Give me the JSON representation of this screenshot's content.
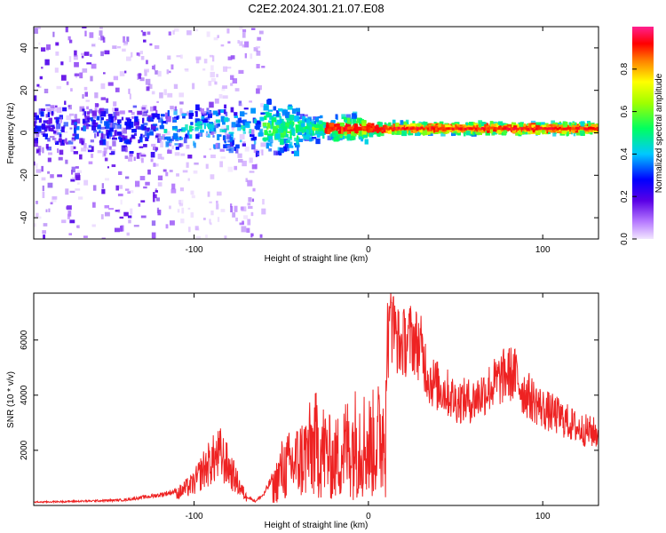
{
  "title": "C2E2.2024.301.21.07.E08",
  "colors": {
    "snr_line": "#ee2222",
    "axis": "#000000"
  },
  "chart_data": [
    {
      "type": "heatmap",
      "name": "spectrogram",
      "xlabel": "Height of straight line (km)",
      "ylabel": "Frequency (Hz)",
      "xlim": [
        -192,
        132
      ],
      "ylim": [
        -50,
        50
      ],
      "xticks": [
        -100,
        0,
        100
      ],
      "xtick_labels": [
        "-100",
        "0",
        "100"
      ],
      "yticks": [
        -40,
        -20,
        0,
        20,
        40
      ],
      "ytick_labels": [
        "-40",
        "-20",
        "0",
        "20",
        "40"
      ],
      "colorbar": {
        "label": "Normalized spectral amplitude",
        "range": [
          0,
          1
        ],
        "ticks": [
          0.0,
          0.2,
          0.4,
          0.6,
          0.8
        ],
        "tick_labels": [
          "0.0",
          "0.2",
          "0.4",
          "0.6",
          "0.8"
        ],
        "colormap": "rainbow (violet → blue → cyan → green → yellow → red → magenta)"
      },
      "features": {
        "dominant_band_frequency_hz": 2,
        "band_peak_x_km": [
          -20,
          110
        ],
        "scatter_noise_x_km": [
          -192,
          -60
        ]
      }
    },
    {
      "type": "line",
      "name": "snr",
      "xlabel": "Height of straight line (km)",
      "ylabel": "SNR (10 * v/v)",
      "xlim": [
        -192,
        132
      ],
      "ylim": [
        0,
        7700
      ],
      "xticks": [
        -100,
        0,
        100
      ],
      "xtick_labels": [
        "-100",
        "0",
        "100"
      ],
      "yticks": [
        2000,
        4000,
        6000
      ],
      "ytick_labels": [
        "2000",
        "4000",
        "6000"
      ],
      "envelope": {
        "x": [
          -192,
          -160,
          -140,
          -120,
          -110,
          -100,
          -95,
          -90,
          -85,
          -80,
          -75,
          -70,
          -65,
          -60,
          -55,
          -50,
          -45,
          -40,
          -35,
          -30,
          -25,
          -20,
          -15,
          -10,
          -5,
          0,
          5,
          10,
          13,
          18,
          25,
          30,
          35,
          40,
          45,
          50,
          60,
          70,
          80,
          85,
          88,
          95,
          100,
          110,
          120,
          132
        ],
        "y": [
          120,
          160,
          200,
          380,
          520,
          1000,
          1600,
          2000,
          2300,
          1700,
          1000,
          350,
          150,
          400,
          1000,
          2200,
          2500,
          2800,
          3300,
          3800,
          3400,
          2700,
          3500,
          3800,
          4200,
          3700,
          4000,
          5000,
          6700,
          5800,
          6100,
          5700,
          4600,
          4300,
          4100,
          3800,
          3800,
          4300,
          4800,
          4700,
          4200,
          3800,
          3500,
          3200,
          2800,
          2600
        ]
      }
    }
  ]
}
